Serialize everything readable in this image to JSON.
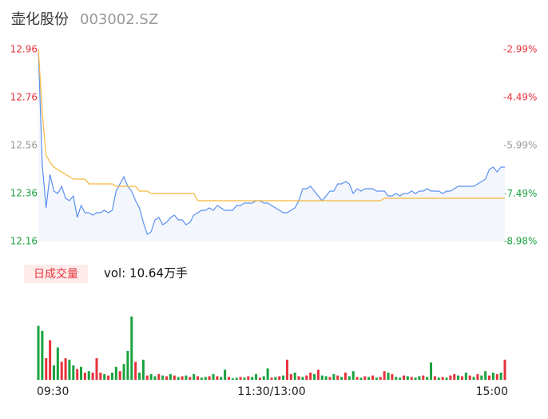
{
  "chart_data": [
    {
      "type": "line",
      "title": "壶化股份",
      "subtitle": "003002.SZ",
      "xlim": [
        0,
        240
      ],
      "xticks": [
        {
          "value": 0,
          "label": "09:30"
        },
        {
          "value": 120,
          "label": "11:30/13:00"
        },
        {
          "value": 240,
          "label": "15:00"
        }
      ],
      "ylim": [
        12.16,
        12.96
      ],
      "yticks": [
        12.16,
        12.36,
        12.56,
        12.76,
        12.96
      ],
      "ytick_colors": [
        "#19a33f",
        "#19a33f",
        "#999999",
        "#e8323c",
        "#e8323c"
      ],
      "y2lim": [
        -8.98,
        -2.99
      ],
      "y2ticks": [
        {
          "value": -8.98,
          "label": "-8.98%"
        },
        {
          "value": -7.49,
          "label": "-7.49%"
        },
        {
          "value": -5.99,
          "label": "-5.99%"
        },
        {
          "value": -4.49,
          "label": "-4.49%"
        },
        {
          "value": -2.99,
          "label": "-2.99%"
        }
      ],
      "area_color": "#f3f7fd",
      "x": [
        0,
        2,
        4,
        6,
        8,
        10,
        12,
        14,
        16,
        18,
        20,
        22,
        24,
        26,
        28,
        30,
        32,
        34,
        36,
        38,
        40,
        42,
        44,
        46,
        48,
        50,
        52,
        54,
        56,
        58,
        60,
        62,
        64,
        66,
        68,
        70,
        72,
        74,
        76,
        78,
        80,
        82,
        84,
        86,
        88,
        90,
        92,
        94,
        96,
        98,
        100,
        102,
        104,
        106,
        108,
        110,
        112,
        114,
        116,
        118,
        120,
        122,
        124,
        126,
        128,
        130,
        132,
        134,
        136,
        138,
        140,
        142,
        144,
        146,
        148,
        150,
        152,
        154,
        156,
        158,
        160,
        162,
        164,
        166,
        168,
        170,
        172,
        174,
        176,
        178,
        180,
        182,
        184,
        186,
        188,
        190,
        192,
        194,
        196,
        198,
        200,
        202,
        204,
        206,
        208,
        210,
        212,
        214,
        216,
        218,
        220,
        222,
        224,
        226,
        228,
        230,
        232,
        234,
        236,
        238,
        240
      ],
      "series": [
        {
          "name": "price",
          "color": "#5b8ff0",
          "values": [
            12.96,
            12.48,
            12.3,
            12.44,
            12.37,
            12.36,
            12.39,
            12.34,
            12.33,
            12.35,
            12.26,
            12.31,
            12.28,
            12.28,
            12.27,
            12.28,
            12.28,
            12.29,
            12.28,
            12.29,
            12.37,
            12.4,
            12.43,
            12.39,
            12.37,
            12.33,
            12.3,
            12.24,
            12.19,
            12.2,
            12.25,
            12.26,
            12.23,
            12.24,
            12.26,
            12.27,
            12.25,
            12.25,
            12.23,
            12.24,
            12.27,
            12.28,
            12.29,
            12.29,
            12.3,
            12.29,
            12.31,
            12.3,
            12.29,
            12.29,
            12.29,
            12.31,
            12.31,
            12.32,
            12.32,
            12.32,
            12.33,
            12.33,
            12.32,
            12.32,
            12.31,
            12.3,
            12.29,
            12.28,
            12.28,
            12.29,
            12.3,
            12.33,
            12.38,
            12.38,
            12.39,
            12.37,
            12.35,
            12.33,
            12.35,
            12.37,
            12.37,
            12.4,
            12.4,
            12.41,
            12.4,
            12.36,
            12.38,
            12.37,
            12.38,
            12.38,
            12.38,
            12.37,
            12.37,
            12.37,
            12.35,
            12.35,
            12.36,
            12.35,
            12.36,
            12.36,
            12.37,
            12.36,
            12.37,
            12.37,
            12.38,
            12.37,
            12.37,
            12.37,
            12.36,
            12.37,
            12.37,
            12.38,
            12.39,
            12.39,
            12.39,
            12.39,
            12.39,
            12.4,
            12.41,
            12.42,
            12.46,
            12.47,
            12.45,
            12.47,
            12.47
          ]
        },
        {
          "name": "average",
          "color": "#f5b63c",
          "values": [
            12.96,
            12.7,
            12.52,
            12.49,
            12.47,
            12.46,
            12.45,
            12.44,
            12.43,
            12.42,
            12.42,
            12.42,
            12.42,
            12.4,
            12.4,
            12.4,
            12.4,
            12.4,
            12.4,
            12.4,
            12.39,
            12.39,
            12.39,
            12.39,
            12.39,
            12.39,
            12.37,
            12.37,
            12.37,
            12.36,
            12.36,
            12.36,
            12.36,
            12.36,
            12.36,
            12.36,
            12.36,
            12.36,
            12.36,
            12.36,
            12.36,
            12.33,
            12.33,
            12.33,
            12.33,
            12.33,
            12.33,
            12.33,
            12.33,
            12.33,
            12.33,
            12.33,
            12.33,
            12.33,
            12.33,
            12.33,
            12.33,
            12.33,
            12.33,
            12.33,
            12.33,
            12.33,
            12.33,
            12.33,
            12.33,
            12.33,
            12.33,
            12.33,
            12.33,
            12.33,
            12.33,
            12.33,
            12.33,
            12.33,
            12.33,
            12.33,
            12.33,
            12.33,
            12.33,
            12.33,
            12.33,
            12.33,
            12.33,
            12.33,
            12.33,
            12.33,
            12.33,
            12.33,
            12.33,
            12.34,
            12.34,
            12.34,
            12.34,
            12.34,
            12.34,
            12.34,
            12.34,
            12.34,
            12.34,
            12.34,
            12.34,
            12.34,
            12.34,
            12.34,
            12.34,
            12.34,
            12.34,
            12.34,
            12.34,
            12.34,
            12.34,
            12.34,
            12.34,
            12.34,
            12.34,
            12.34,
            12.34,
            12.34,
            12.34,
            12.34,
            12.34
          ]
        }
      ]
    },
    {
      "type": "bar",
      "name": "日成交量",
      "label": "vol: 10.64万手",
      "ylim": [
        0,
        100
      ],
      "palette": {
        "u": "#e8323c",
        "d": "#19a33f"
      },
      "x": [
        0,
        2,
        4,
        6,
        8,
        10,
        12,
        14,
        16,
        18,
        20,
        22,
        24,
        26,
        28,
        30,
        32,
        34,
        36,
        38,
        40,
        42,
        44,
        46,
        48,
        50,
        52,
        54,
        56,
        58,
        60,
        62,
        64,
        66,
        68,
        70,
        72,
        74,
        76,
        78,
        80,
        82,
        84,
        86,
        88,
        90,
        92,
        94,
        96,
        98,
        100,
        102,
        104,
        106,
        108,
        110,
        112,
        114,
        116,
        118,
        120,
        122,
        124,
        126,
        128,
        130,
        132,
        134,
        136,
        138,
        140,
        142,
        144,
        146,
        148,
        150,
        152,
        154,
        156,
        158,
        160,
        162,
        164,
        166,
        168,
        170,
        172,
        174,
        176,
        178,
        180,
        182,
        184,
        186,
        188,
        190,
        192,
        194,
        196,
        198,
        200,
        202,
        204,
        206,
        208,
        210,
        212,
        214,
        216,
        218,
        220,
        222,
        224,
        226,
        228,
        230,
        232,
        234,
        236,
        238,
        240
      ],
      "values": [
        75,
        68,
        30,
        55,
        20,
        45,
        25,
        30,
        28,
        20,
        15,
        18,
        10,
        12,
        10,
        30,
        10,
        8,
        6,
        10,
        18,
        12,
        22,
        40,
        88,
        25,
        10,
        28,
        6,
        8,
        5,
        8,
        6,
        5,
        8,
        6,
        4,
        5,
        6,
        4,
        8,
        5,
        3,
        4,
        5,
        8,
        5,
        4,
        14,
        4,
        2,
        3,
        4,
        3,
        5,
        4,
        8,
        3,
        5,
        16,
        3,
        4,
        5,
        6,
        28,
        8,
        10,
        5,
        4,
        6,
        10,
        8,
        14,
        6,
        5,
        4,
        8,
        6,
        4,
        10,
        5,
        12,
        4,
        3,
        5,
        4,
        6,
        3,
        4,
        12,
        10,
        8,
        4,
        3,
        6,
        5,
        4,
        3,
        5,
        6,
        4,
        24,
        5,
        3,
        4,
        3,
        6,
        8,
        6,
        5,
        10,
        6,
        4,
        8,
        6,
        12,
        6,
        10,
        8,
        10,
        28
      ],
      "colors": [
        "d",
        "d",
        "u",
        "u",
        "d",
        "d",
        "u",
        "u",
        "d",
        "d",
        "u",
        "d",
        "u",
        "d",
        "u",
        "u",
        "u",
        "d",
        "u",
        "d",
        "d",
        "u",
        "d",
        "d",
        "d",
        "u",
        "d",
        "d",
        "u",
        "d",
        "d",
        "u",
        "d",
        "u",
        "d",
        "u",
        "d",
        "u",
        "d",
        "u",
        "d",
        "u",
        "d",
        "d",
        "u",
        "d",
        "u",
        "d",
        "d",
        "u",
        "d",
        "d",
        "u",
        "d",
        "u",
        "d",
        "d",
        "u",
        "d",
        "d",
        "u",
        "d",
        "u",
        "d",
        "u",
        "u",
        "d",
        "u",
        "d",
        "u",
        "u",
        "d",
        "u",
        "d",
        "d",
        "u",
        "d",
        "u",
        "d",
        "u",
        "d",
        "d",
        "u",
        "d",
        "u",
        "d",
        "u",
        "d",
        "u",
        "u",
        "d",
        "u",
        "d",
        "d",
        "u",
        "d",
        "u",
        "d",
        "d",
        "u",
        "d",
        "d",
        "u",
        "d",
        "u",
        "d",
        "u",
        "u",
        "d",
        "u",
        "d",
        "u",
        "d",
        "u",
        "d",
        "d",
        "u",
        "d",
        "u",
        "d",
        "u"
      ]
    }
  ]
}
